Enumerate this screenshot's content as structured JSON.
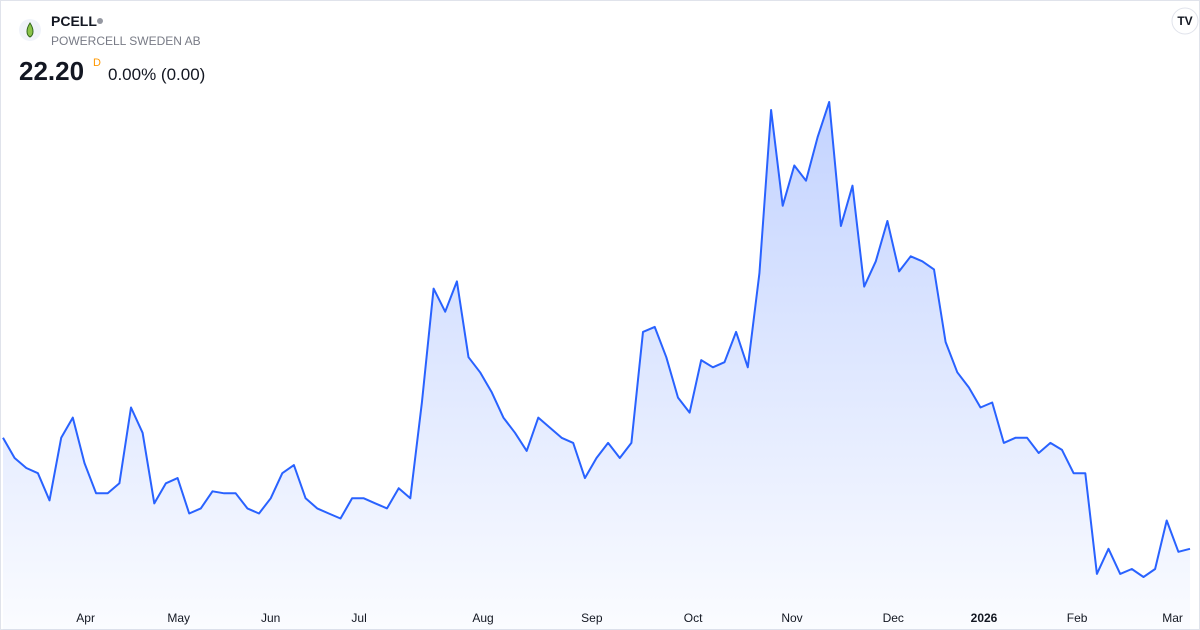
{
  "header": {
    "symbol": "PCELL",
    "name": "POWERCELL SWEDEN AB",
    "price": "22.20",
    "interval": "D",
    "change": "0.00% (0.00)"
  },
  "chart_data": {
    "type": "line",
    "color": "#2962ff",
    "values": [
      29.79,
      28.41,
      27.72,
      27.37,
      25.51,
      29.79,
      31.17,
      28.06,
      25.99,
      25.99,
      26.68,
      31.86,
      30.13,
      25.3,
      26.68,
      27.03,
      24.61,
      24.96,
      26.13,
      25.99,
      25.99,
      24.96,
      24.61,
      25.65,
      27.37,
      27.92,
      25.65,
      24.96,
      24.61,
      24.27,
      25.65,
      25.65,
      25.3,
      24.96,
      26.34,
      25.65,
      32.2,
      39.99,
      38.41,
      40.48,
      35.3,
      34.27,
      32.89,
      31.17,
      30.13,
      28.89,
      31.17,
      30.48,
      29.79,
      29.44,
      27.03,
      28.41,
      29.44,
      28.41,
      29.44,
      37.03,
      37.37,
      35.3,
      32.54,
      31.51,
      35.1,
      34.61,
      34.96,
      37.03,
      34.61,
      41.03,
      52.2,
      45.65,
      48.41,
      47.37,
      50.34,
      52.75,
      44.27,
      47.03,
      40.13,
      41.86,
      44.61,
      41.17,
      42.2,
      41.86,
      41.3,
      36.34,
      34.27,
      33.23,
      31.86,
      32.2,
      29.44,
      29.79,
      29.79,
      28.75,
      29.44,
      28.96,
      27.37,
      27.37,
      20.48,
      22.2,
      20.48,
      20.82,
      20.27,
      20.82,
      24.13,
      21.99,
      22.2
    ],
    "xlim": [
      0,
      102
    ],
    "xticks": [
      {
        "value": 7.1,
        "label": "Apr"
      },
      {
        "value": 15.1,
        "label": "May"
      },
      {
        "value": 23,
        "label": "Jun"
      },
      {
        "value": 30.6,
        "label": "Jul"
      },
      {
        "value": 41.25,
        "label": "Aug"
      },
      {
        "value": 50.6,
        "label": "Sep"
      },
      {
        "value": 59.3,
        "label": "Oct"
      },
      {
        "value": 67.8,
        "label": "Nov"
      },
      {
        "value": 76.5,
        "label": "Dec"
      },
      {
        "value": 84.3,
        "label": "2026"
      },
      {
        "value": 92.3,
        "label": "Feb"
      },
      {
        "value": 100.5,
        "label": "Mar"
      }
    ]
  }
}
